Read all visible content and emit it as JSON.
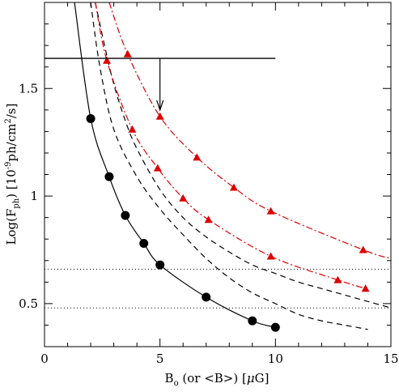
{
  "chart_data": {
    "type": "line",
    "xlabel": "B",
    "xlabel_sub": "o",
    "xlabel_rest": " (or <B>) [",
    "xlabel_mu": "μ",
    "xlabel_unit": "G]",
    "ylabel_main": "Log(F",
    "ylabel_sub": "ph",
    "ylabel_rest": ") [10",
    "ylabel_sup": "-9",
    "ylabel_unit": "ph/cm",
    "ylabel_sup2": "2",
    "ylabel_end": "/s]",
    "xlim": [
      0,
      15
    ],
    "ylim": [
      0.3,
      1.9
    ],
    "x_ticks": [
      0,
      5,
      10,
      15
    ],
    "x_tick_labels": [
      "0",
      "5",
      "10",
      "15"
    ],
    "y_ticks": [
      0.5,
      1,
      1.5
    ],
    "y_tick_labels": [
      "0.5",
      "1",
      "1.5"
    ],
    "series": [
      {
        "style": "solid-circles",
        "color": "#000000",
        "points": [
          [
            2.0,
            1.36
          ],
          [
            2.8,
            1.09
          ],
          [
            3.5,
            0.91
          ],
          [
            4.3,
            0.78
          ],
          [
            5.0,
            0.68
          ],
          [
            7.0,
            0.53
          ],
          [
            9.0,
            0.42
          ],
          [
            10.0,
            0.39
          ]
        ],
        "curve_start": [
          1.3,
          1.9
        ]
      },
      {
        "style": "dashed",
        "color": "#000000",
        "points": [
          [
            2.0,
            1.9
          ],
          [
            2.4,
            1.6
          ],
          [
            3.0,
            1.31
          ],
          [
            4.0,
            1.09
          ],
          [
            5.0,
            0.94
          ],
          [
            6.0,
            0.82
          ],
          [
            7.0,
            0.71
          ],
          [
            8.0,
            0.62
          ],
          [
            9.0,
            0.55
          ],
          [
            10.0,
            0.5
          ],
          [
            11.0,
            0.45
          ],
          [
            12.0,
            0.42
          ],
          [
            13.0,
            0.4
          ],
          [
            14.0,
            0.38
          ]
        ]
      },
      {
        "style": "dashed",
        "color": "#000000",
        "points": [
          [
            2.2,
            1.9
          ],
          [
            2.6,
            1.7
          ],
          [
            3.0,
            1.52
          ],
          [
            3.5,
            1.35
          ],
          [
            4.0,
            1.22
          ],
          [
            5.0,
            1.03
          ],
          [
            6.0,
            0.9
          ],
          [
            7.0,
            0.81
          ],
          [
            8.0,
            0.74
          ],
          [
            9.0,
            0.68
          ],
          [
            10.0,
            0.64
          ],
          [
            11.0,
            0.6
          ],
          [
            12.0,
            0.57
          ],
          [
            13.0,
            0.54
          ],
          [
            14.0,
            0.51
          ],
          [
            15.0,
            0.48
          ]
        ]
      },
      {
        "style": "dashdot-triangles",
        "color": "#dd0000",
        "points": [
          [
            2.7,
            1.63
          ],
          [
            3.8,
            1.31
          ],
          [
            4.9,
            1.13
          ],
          [
            6.0,
            0.99
          ],
          [
            7.1,
            0.89
          ],
          [
            9.8,
            0.72
          ],
          [
            12.7,
            0.61
          ],
          [
            13.9,
            0.57
          ]
        ],
        "curve_start": [
          2.2,
          1.9
        ]
      },
      {
        "style": "dashdot-triangles",
        "color": "#dd0000",
        "points": [
          [
            3.6,
            1.66
          ],
          [
            5.0,
            1.37
          ],
          [
            6.6,
            1.18
          ],
          [
            8.2,
            1.04
          ],
          [
            9.8,
            0.93
          ],
          [
            13.8,
            0.75
          ]
        ],
        "curve_start": [
          2.8,
          1.9
        ],
        "curve_end": [
          15.0,
          0.71
        ]
      }
    ],
    "hlines_dotted": [
      0.66,
      0.48
    ],
    "upper_limit": {
      "x_start": 0,
      "x_end": 10,
      "y": 1.64,
      "arrow_x": 5,
      "arrow_to_y": 1.4
    }
  }
}
